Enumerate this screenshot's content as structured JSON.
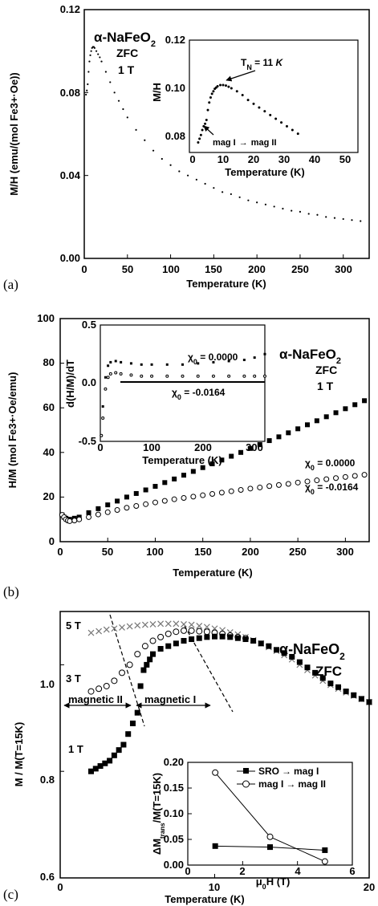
{
  "chart_data": [
    {
      "panel_label": "(a)",
      "type": "scatter",
      "xlabel": "Temperature (K)",
      "ylabel": "M/H (emu/(mol Fe3+·Oe))",
      "xlim": [
        0,
        330
      ],
      "ylim": [
        0,
        0.12
      ],
      "xticks": [
        0,
        50,
        100,
        150,
        200,
        250,
        300
      ],
      "yticks": [
        0.0,
        0.04,
        0.08,
        0.12
      ],
      "xtick_labels": [
        "0",
        "50",
        "100",
        "150",
        "200",
        "250",
        "300"
      ],
      "ytick_labels": [
        "0.00",
        "0.04",
        "0.08",
        "0.12"
      ],
      "title_lines": [
        "α-NaFeO",
        "ZFC",
        "1 T"
      ],
      "title_sub": "2",
      "series": [
        {
          "x": [
            2,
            3,
            4,
            5,
            6,
            7,
            8,
            9,
            10,
            11,
            12,
            14,
            16,
            18,
            20,
            25,
            30,
            35,
            40,
            45,
            50,
            60,
            70,
            80,
            90,
            100,
            110,
            120,
            130,
            140,
            150,
            160,
            170,
            180,
            190,
            200,
            210,
            220,
            230,
            240,
            250,
            260,
            270,
            280,
            290,
            300,
            310,
            320
          ],
          "y": [
            0.079,
            0.081,
            0.084,
            0.09,
            0.095,
            0.098,
            0.1,
            0.1015,
            0.102,
            0.102,
            0.1015,
            0.1,
            0.0985,
            0.097,
            0.095,
            0.09,
            0.085,
            0.08,
            0.076,
            0.072,
            0.068,
            0.062,
            0.057,
            0.052,
            0.048,
            0.045,
            0.042,
            0.04,
            0.038,
            0.036,
            0.034,
            0.032,
            0.031,
            0.0295,
            0.028,
            0.027,
            0.026,
            0.025,
            0.024,
            0.023,
            0.0225,
            0.0215,
            0.021,
            0.02,
            0.0195,
            0.019,
            0.0185,
            0.018
          ]
        }
      ],
      "inset": {
        "xlabel": "Temperature (K)",
        "ylabel": "M/H",
        "xlim": [
          0,
          55
        ],
        "ylim": [
          0.075,
          0.12
        ],
        "xticks": [
          0,
          10,
          20,
          30,
          40,
          50
        ],
        "yticks": [
          0.08,
          0.1,
          0.12
        ],
        "xtick_labels": [
          "0",
          "10",
          "20",
          "30",
          "40",
          "50"
        ],
        "ytick_labels": [
          "0.08",
          "0.10",
          "0.12"
        ],
        "annotations": [
          "T",
          "N",
          " = 11 ",
          "K",
          "mag I",
          "mag II"
        ],
        "series": [
          {
            "x": [
              2,
              2.5,
              3,
              3.5,
              4,
              4.5,
              5,
              5.5,
              6,
              6.5,
              7,
              7.5,
              8,
              8.5,
              9,
              10,
              11,
              12,
              13,
              14,
              16,
              18,
              20,
              22,
              24,
              26,
              28,
              30,
              32,
              34,
              36,
              38
            ],
            "y": [
              0.079,
              0.0805,
              0.082,
              0.084,
              0.0855,
              0.0865,
              0.088,
              0.092,
              0.095,
              0.097,
              0.0985,
              0.0995,
              0.1005,
              0.101,
              0.1015,
              0.102,
              0.102,
              0.1018,
              0.1013,
              0.1007,
              0.0995,
              0.098,
              0.096,
              0.0945,
              0.093,
              0.0915,
              0.09,
              0.0885,
              0.087,
              0.0855,
              0.084,
              0.0825
            ]
          }
        ]
      }
    },
    {
      "panel_label": "(b)",
      "type": "scatter",
      "xlabel": "Temperature (K)",
      "ylabel": "H/M (mol Fe3+·Oe/emu)",
      "xlim": [
        0,
        325
      ],
      "ylim": [
        0,
        100
      ],
      "xticks": [
        0,
        50,
        100,
        150,
        200,
        250,
        300
      ],
      "yticks": [
        0,
        20,
        40,
        60,
        80,
        100
      ],
      "xtick_labels": [
        "0",
        "50",
        "100",
        "150",
        "200",
        "250",
        "300"
      ],
      "ytick_labels": [
        "0",
        "20",
        "40",
        "60",
        "80",
        "100"
      ],
      "title_lines": [
        "α-NaFeO",
        "ZFC",
        "1 T"
      ],
      "title_sub": "2",
      "series_labels": [
        "χ",
        "0",
        " = 0.0000",
        " = -0.0164"
      ],
      "series": [
        {
          "marker": "filled-square",
          "x": [
            2,
            4,
            6,
            8,
            10,
            15,
            20,
            30,
            40,
            50,
            60,
            70,
            80,
            90,
            100,
            110,
            120,
            130,
            140,
            150,
            160,
            170,
            180,
            190,
            200,
            210,
            220,
            230,
            240,
            250,
            260,
            270,
            280,
            290,
            300,
            310,
            320
          ],
          "y": [
            12,
            11,
            10.5,
            10,
            10,
            10.5,
            11,
            13,
            14.8,
            16.5,
            18.2,
            20,
            21.6,
            23.2,
            24.8,
            26.5,
            28.1,
            29.8,
            31.5,
            33.2,
            34.9,
            36.6,
            38.3,
            40,
            41.8,
            43.5,
            45.3,
            47,
            48.8,
            50.6,
            52.4,
            54.2,
            56,
            57.8,
            59.6,
            61.4,
            63.2
          ]
        },
        {
          "marker": "open-circle",
          "x": [
            2,
            4,
            6,
            8,
            10,
            15,
            20,
            30,
            40,
            50,
            60,
            70,
            80,
            90,
            100,
            110,
            120,
            130,
            140,
            150,
            160,
            170,
            180,
            190,
            200,
            210,
            220,
            230,
            240,
            250,
            260,
            270,
            280,
            290,
            300,
            310,
            320
          ],
          "y": [
            12,
            11,
            10,
            9.5,
            9.2,
            9.5,
            10,
            11,
            12.2,
            13.2,
            14.2,
            15.2,
            16,
            16.8,
            17.6,
            18.3,
            19,
            19.6,
            20.2,
            20.8,
            21.4,
            22,
            22.6,
            23.2,
            23.8,
            24.3,
            24.9,
            25.4,
            25.9,
            26.5,
            27,
            27.5,
            28,
            28.5,
            29,
            29.5,
            30
          ]
        }
      ],
      "inset": {
        "xlabel": "Temperature (K)",
        "ylabel": "d(H/M)/dT",
        "xlim": [
          0,
          320
        ],
        "ylim": [
          -0.5,
          0.5
        ],
        "xticks": [
          0,
          100,
          200,
          300
        ],
        "yticks": [
          -0.5,
          0.0,
          0.5
        ],
        "xtick_labels": [
          "0",
          "100",
          "200",
          "300"
        ],
        "ytick_labels": [
          "-0.5",
          "0.0",
          "0.5"
        ],
        "annotations": [
          "χ",
          "0",
          " = 0.0000",
          " = -0.0164"
        ],
        "series": [
          {
            "marker": "filled-square",
            "x": [
              2,
              5,
              10,
              15,
              20,
              30,
              40,
              60,
              80,
              100,
              130,
              160,
              190,
              220,
              250,
              280,
              300,
              320
            ],
            "y": [
              -0.45,
              -0.2,
              0.05,
              0.15,
              0.18,
              0.19,
              0.18,
              0.17,
              0.16,
              0.16,
              0.16,
              0.16,
              0.17,
              0.18,
              0.19,
              0.2,
              0.22,
              0.25
            ]
          },
          {
            "marker": "open-circle",
            "x": [
              2,
              5,
              10,
              15,
              20,
              30,
              40,
              60,
              80,
              100,
              130,
              160,
              190,
              220,
              250,
              280,
              300,
              320
            ],
            "y": [
              -0.45,
              -0.3,
              -0.05,
              0.05,
              0.08,
              0.09,
              0.08,
              0.07,
              0.06,
              0.06,
              0.06,
              0.06,
              0.06,
              0.06,
              0.06,
              0.06,
              0.06,
              0.06
            ]
          }
        ]
      }
    },
    {
      "panel_label": "(c)",
      "type": "scatter",
      "xlabel": "Temperature (K)",
      "ylabel": "M / M(T=15K)",
      "xlim": [
        0,
        20
      ],
      "ylim": [
        0.6,
        1.1
      ],
      "xticks": [
        0,
        10,
        20
      ],
      "yticks": [
        0.6,
        0.8,
        1.0
      ],
      "xtick_labels": [
        "0",
        "10",
        "20"
      ],
      "ytick_labels": [
        "0.6",
        "0.8",
        "1.0"
      ],
      "title_lines": [
        "α-NaFeO",
        "ZFC"
      ],
      "title_sub": "2",
      "region_labels": [
        "magnetic II",
        "magnetic I"
      ],
      "field_labels": [
        "5 T",
        "3 T",
        "1 T"
      ],
      "series": [
        {
          "name": "1 T",
          "marker": "filled-square",
          "x": [
            2,
            2.3,
            2.6,
            2.9,
            3.2,
            3.5,
            3.8,
            4.1,
            4.4,
            4.7,
            5.0,
            5.2,
            5.4,
            5.6,
            5.8,
            6.0,
            6.5,
            7,
            7.5,
            8,
            8.5,
            9,
            9.5,
            10,
            10.5,
            11,
            11.5,
            12,
            12.5,
            13,
            13.5,
            14,
            14.5,
            15,
            15.5,
            16,
            16.5,
            17,
            17.5,
            18,
            18.5,
            19,
            19.5,
            20
          ],
          "y": [
            0.8,
            0.805,
            0.81,
            0.815,
            0.82,
            0.83,
            0.84,
            0.85,
            0.87,
            0.89,
            0.91,
            0.96,
            0.99,
            1.0,
            1.01,
            1.02,
            1.03,
            1.035,
            1.04,
            1.045,
            1.048,
            1.05,
            1.052,
            1.053,
            1.053,
            1.052,
            1.05,
            1.048,
            1.045,
            1.04,
            1.035,
            1.028,
            1.022,
            1.015,
            1.005,
            0.995,
            0.985,
            0.975,
            0.965,
            0.958,
            0.95,
            0.943,
            0.936,
            0.93
          ]
        },
        {
          "name": "3 T",
          "marker": "open-circle",
          "x": [
            2,
            2.5,
            3,
            3.5,
            4,
            4.5,
            5,
            5.5,
            6,
            6.5,
            7,
            7.5,
            8,
            8.5,
            9,
            9.5,
            10,
            10.5,
            11,
            11.5,
            12
          ],
          "y": [
            0.95,
            0.955,
            0.96,
            0.97,
            0.985,
            1.0,
            1.02,
            1.035,
            1.045,
            1.052,
            1.058,
            1.062,
            1.064,
            1.064,
            1.063,
            1.062,
            1.06,
            1.058,
            1.055,
            1.052,
            1.05
          ]
        },
        {
          "name": "5 T",
          "marker": "cross",
          "x": [
            2,
            2.5,
            3,
            3.5,
            4,
            4.5,
            5,
            5.5,
            6,
            6.5,
            7,
            7.5,
            8,
            8.5,
            9,
            9.5,
            10,
            10.5,
            11,
            11.5,
            12,
            12.5,
            13,
            13.5,
            14,
            14.5,
            15,
            15.5,
            16,
            16.5,
            17,
            17.5,
            18,
            18.5,
            19,
            19.5,
            20
          ],
          "y": [
            1.06,
            1.063,
            1.066,
            1.068,
            1.07,
            1.072,
            1.074,
            1.075,
            1.076,
            1.077,
            1.077,
            1.077,
            1.076,
            1.075,
            1.073,
            1.071,
            1.068,
            1.065,
            1.061,
            1.057,
            1.052,
            1.046,
            1.04,
            1.033,
            1.026,
            1.018,
            1.01,
            1.0,
            0.99,
            0.98,
            0.97,
            0.962,
            0.955,
            0.948,
            0.942,
            0.936,
            0.93
          ]
        }
      ],
      "inset": {
        "xlabel": "μ0H (T)",
        "ylabel": "ΔMtrans/M(T=15K)",
        "xlim": [
          0,
          6
        ],
        "ylim": [
          0,
          0.2
        ],
        "xticks": [
          0,
          2,
          4,
          6
        ],
        "yticks": [
          0.0,
          0.05,
          0.1,
          0.15,
          0.2
        ],
        "xtick_labels": [
          "0",
          "2",
          "4",
          "6"
        ],
        "ytick_labels": [
          "0.00",
          "0.05",
          "0.10",
          "0.15",
          "0.20"
        ],
        "xlabel_parts": [
          "μ",
          "0",
          "H (T)"
        ],
        "ylabel_parts": [
          "ΔM",
          "trans",
          "/M(T=15K)"
        ],
        "series": [
          {
            "name": "SRO → mag I",
            "legend_parts": [
              "SRO",
              "mag I"
            ],
            "marker": "filled-square",
            "x": [
              1,
              3,
              5
            ],
            "y": [
              0.037,
              0.035,
              0.029
            ]
          },
          {
            "name": "mag I → mag II",
            "legend_parts": [
              "mag I",
              "mag II"
            ],
            "marker": "open-circle",
            "x": [
              1,
              3,
              5
            ],
            "y": [
              0.18,
              0.055,
              0.007
            ]
          }
        ]
      }
    }
  ]
}
